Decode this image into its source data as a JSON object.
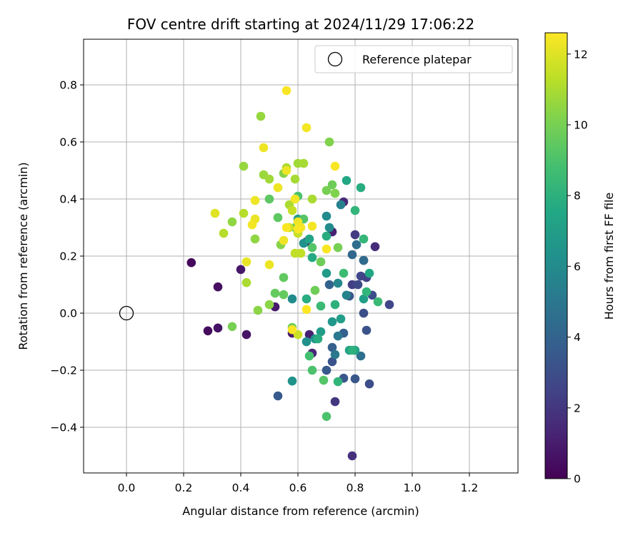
{
  "chart_data": {
    "type": "scatter",
    "title": "FOV centre drift starting at 2024/11/29 17:06:22",
    "xlabel": "Angular distance from reference (arcmin)",
    "ylabel": "Rotation from reference (arcmin)",
    "xlim": [
      -0.15,
      1.37
    ],
    "ylim": [
      -0.56,
      0.96
    ],
    "xticks": [
      0.0,
      0.2,
      0.4,
      0.6,
      0.8,
      1.0,
      1.2
    ],
    "xtick_labels": [
      "0.0",
      "0.2",
      "0.4",
      "0.6",
      "0.8",
      "1.0",
      "1.2"
    ],
    "yticks": [
      -0.4,
      -0.2,
      0.0,
      0.2,
      0.4,
      0.6,
      0.8
    ],
    "ytick_labels": [
      "−0.4",
      "−0.2",
      "0.0",
      "0.2",
      "0.4",
      "0.6",
      "0.8"
    ],
    "grid": true,
    "legend": {
      "placement": "top-right",
      "entries": [
        "Reference platepar"
      ]
    },
    "reference_point": {
      "name": "Reference platepar",
      "x": 0.0,
      "y": 0.0
    },
    "colorbar": {
      "label": "Hours from first FF file",
      "colormap": "viridis",
      "range": [
        0,
        12.6
      ],
      "ticks": [
        0,
        2,
        4,
        6,
        8,
        10,
        12
      ],
      "tick_labels": [
        "0",
        "2",
        "4",
        "6",
        "8",
        "10",
        "12"
      ]
    },
    "series": [
      {
        "points": [
          [
            0.227,
            0.177,
            0.3
          ],
          [
            0.32,
            0.092,
            0.5
          ],
          [
            0.285,
            -0.062,
            0.4
          ],
          [
            0.32,
            -0.052,
            0.6
          ],
          [
            0.4,
            0.153,
            0.8
          ],
          [
            0.42,
            -0.075,
            0.7
          ],
          [
            0.52,
            0.022,
            0.9
          ],
          [
            0.79,
            -0.5,
            1.8
          ],
          [
            0.72,
            0.285,
            1.2
          ],
          [
            0.76,
            0.39,
            1.5
          ],
          [
            0.87,
            0.233,
            1.6
          ],
          [
            0.63,
            0.25,
            1.0
          ],
          [
            0.64,
            -0.075,
            1.1
          ],
          [
            0.58,
            -0.07,
            0.9
          ],
          [
            0.65,
            -0.14,
            1.3
          ],
          [
            0.73,
            -0.31,
            2.0
          ],
          [
            0.8,
            0.275,
            2.2
          ],
          [
            0.79,
            0.1,
            2.4
          ],
          [
            0.82,
            0.13,
            2.6
          ],
          [
            0.83,
            0.185,
            2.3
          ],
          [
            0.81,
            0.1,
            2.8
          ],
          [
            0.84,
            0.125,
            2.5
          ],
          [
            0.92,
            0.03,
            2.6
          ],
          [
            0.86,
            0.063,
            3.0
          ],
          [
            0.85,
            -0.248,
            3.0
          ],
          [
            0.84,
            -0.06,
            3.2
          ],
          [
            0.83,
            0.0,
            3.0
          ],
          [
            0.78,
            0.06,
            3.3
          ],
          [
            0.8,
            -0.23,
            3.4
          ],
          [
            0.72,
            -0.17,
            3.2
          ],
          [
            0.7,
            -0.2,
            3.5
          ],
          [
            0.76,
            -0.228,
            3.4
          ],
          [
            0.53,
            -0.29,
            3.6
          ],
          [
            0.72,
            -0.12,
            3.8
          ],
          [
            0.76,
            -0.07,
            3.9
          ],
          [
            0.71,
            0.1,
            4.0
          ],
          [
            0.79,
            0.205,
            4.2
          ],
          [
            0.805,
            0.24,
            4.5
          ],
          [
            0.82,
            -0.15,
            4.6
          ],
          [
            0.83,
            0.185,
            4.4
          ],
          [
            0.73,
            -0.145,
            5.0
          ],
          [
            0.74,
            -0.08,
            5.1
          ],
          [
            0.75,
            0.38,
            5.5
          ],
          [
            0.77,
            0.063,
            5.6
          ],
          [
            0.74,
            0.105,
            5.8
          ],
          [
            0.7,
            0.34,
            6.0
          ],
          [
            0.71,
            0.3,
            6.0
          ],
          [
            0.62,
            0.245,
            6.3
          ],
          [
            0.58,
            0.05,
            6.0
          ],
          [
            0.63,
            -0.1,
            6.3
          ],
          [
            0.58,
            -0.238,
            6.4
          ],
          [
            0.66,
            -0.09,
            6.5
          ],
          [
            0.7,
            0.14,
            6.8
          ],
          [
            0.72,
            -0.03,
            6.6
          ],
          [
            0.68,
            -0.065,
            6.9
          ],
          [
            0.75,
            -0.02,
            7.0
          ],
          [
            0.78,
            -0.13,
            7.2
          ],
          [
            0.8,
            -0.13,
            7.3
          ],
          [
            0.83,
            0.05,
            7.0
          ],
          [
            0.85,
            0.14,
            7.5
          ],
          [
            0.77,
            0.465,
            7.5
          ],
          [
            0.82,
            0.44,
            7.8
          ],
          [
            0.6,
            0.33,
            7.0
          ],
          [
            0.64,
            0.26,
            7.4
          ],
          [
            0.65,
            0.195,
            7.6
          ],
          [
            0.63,
            0.05,
            7.8
          ],
          [
            0.67,
            -0.09,
            7.8
          ],
          [
            0.7,
            0.27,
            7.8
          ],
          [
            0.73,
            0.03,
            8.0
          ],
          [
            0.74,
            -0.24,
            8.2
          ],
          [
            0.79,
            -0.13,
            8.0
          ],
          [
            0.8,
            0.36,
            8.2
          ],
          [
            0.84,
            0.075,
            8.2
          ],
          [
            0.88,
            0.04,
            8.5
          ],
          [
            0.83,
            0.26,
            8.3
          ],
          [
            0.68,
            0.025,
            8.5
          ],
          [
            0.76,
            0.14,
            8.6
          ],
          [
            0.64,
            -0.15,
            8.8
          ],
          [
            0.65,
            -0.2,
            9.0
          ],
          [
            0.7,
            -0.362,
            9.0
          ],
          [
            0.69,
            -0.235,
            9.2
          ],
          [
            0.6,
            0.41,
            9.0
          ],
          [
            0.65,
            0.23,
            9.2
          ],
          [
            0.62,
            0.33,
            9.2
          ],
          [
            0.59,
            0.3,
            9.3
          ],
          [
            0.53,
            0.335,
            9.4
          ],
          [
            0.5,
            0.4,
            9.4
          ],
          [
            0.55,
            0.125,
            9.5
          ],
          [
            0.52,
            0.07,
            9.6
          ],
          [
            0.55,
            0.065,
            9.6
          ],
          [
            0.58,
            -0.05,
            9.8
          ],
          [
            0.66,
            0.08,
            9.8
          ],
          [
            0.68,
            0.18,
            9.8
          ],
          [
            0.72,
            0.45,
            9.8
          ],
          [
            0.74,
            0.23,
            10.0
          ],
          [
            0.7,
            0.43,
            10.0
          ],
          [
            0.71,
            0.6,
            10.2
          ],
          [
            0.73,
            0.42,
            10.2
          ],
          [
            0.55,
            0.49,
            10.3
          ],
          [
            0.54,
            0.24,
            10.3
          ],
          [
            0.5,
            0.03,
            10.4
          ],
          [
            0.46,
            0.01,
            10.4
          ],
          [
            0.37,
            -0.047,
            10.0
          ],
          [
            0.37,
            0.32,
            10.5
          ],
          [
            0.45,
            0.26,
            10.5
          ],
          [
            0.47,
            0.69,
            10.6
          ],
          [
            0.41,
            0.515,
            10.6
          ],
          [
            0.48,
            0.485,
            10.7
          ],
          [
            0.5,
            0.47,
            10.8
          ],
          [
            0.6,
            0.525,
            10.8
          ],
          [
            0.62,
            0.525,
            10.9
          ],
          [
            0.59,
            0.47,
            10.9
          ],
          [
            0.56,
            0.51,
            11.0
          ],
          [
            0.57,
            0.38,
            11.0
          ],
          [
            0.65,
            0.4,
            11.0
          ],
          [
            0.41,
            0.35,
            11.2
          ],
          [
            0.34,
            0.28,
            11.2
          ],
          [
            0.42,
            0.107,
            11.0
          ],
          [
            0.59,
            0.21,
            11.4
          ],
          [
            0.61,
            0.21,
            11.4
          ],
          [
            0.6,
            0.28,
            11.5
          ],
          [
            0.58,
            0.36,
            11.5
          ],
          [
            0.57,
            0.3,
            11.6
          ],
          [
            0.6,
            -0.075,
            11.6
          ],
          [
            0.31,
            0.35,
            12.0
          ],
          [
            0.42,
            0.18,
            12.2
          ],
          [
            0.45,
            0.33,
            12.2
          ],
          [
            0.44,
            0.31,
            12.4
          ],
          [
            0.45,
            0.395,
            12.3
          ],
          [
            0.48,
            0.58,
            12.3
          ],
          [
            0.5,
            0.17,
            12.3
          ],
          [
            0.53,
            0.44,
            12.3
          ],
          [
            0.55,
            0.255,
            12.3
          ],
          [
            0.56,
            0.5,
            12.3
          ],
          [
            0.59,
            0.4,
            12.4
          ],
          [
            0.6,
            0.32,
            12.3
          ],
          [
            0.61,
            0.3,
            12.4
          ],
          [
            0.63,
            0.65,
            12.4
          ],
          [
            0.65,
            0.305,
            12.4
          ],
          [
            0.56,
            0.78,
            12.5
          ],
          [
            0.7,
            0.225,
            12.5
          ],
          [
            0.73,
            0.515,
            12.5
          ],
          [
            0.63,
            0.013,
            12.6
          ],
          [
            0.58,
            -0.058,
            12.5
          ],
          [
            0.56,
            0.3,
            12.5
          ],
          [
            0.6,
            0.295,
            12.5
          ]
        ]
      }
    ]
  }
}
